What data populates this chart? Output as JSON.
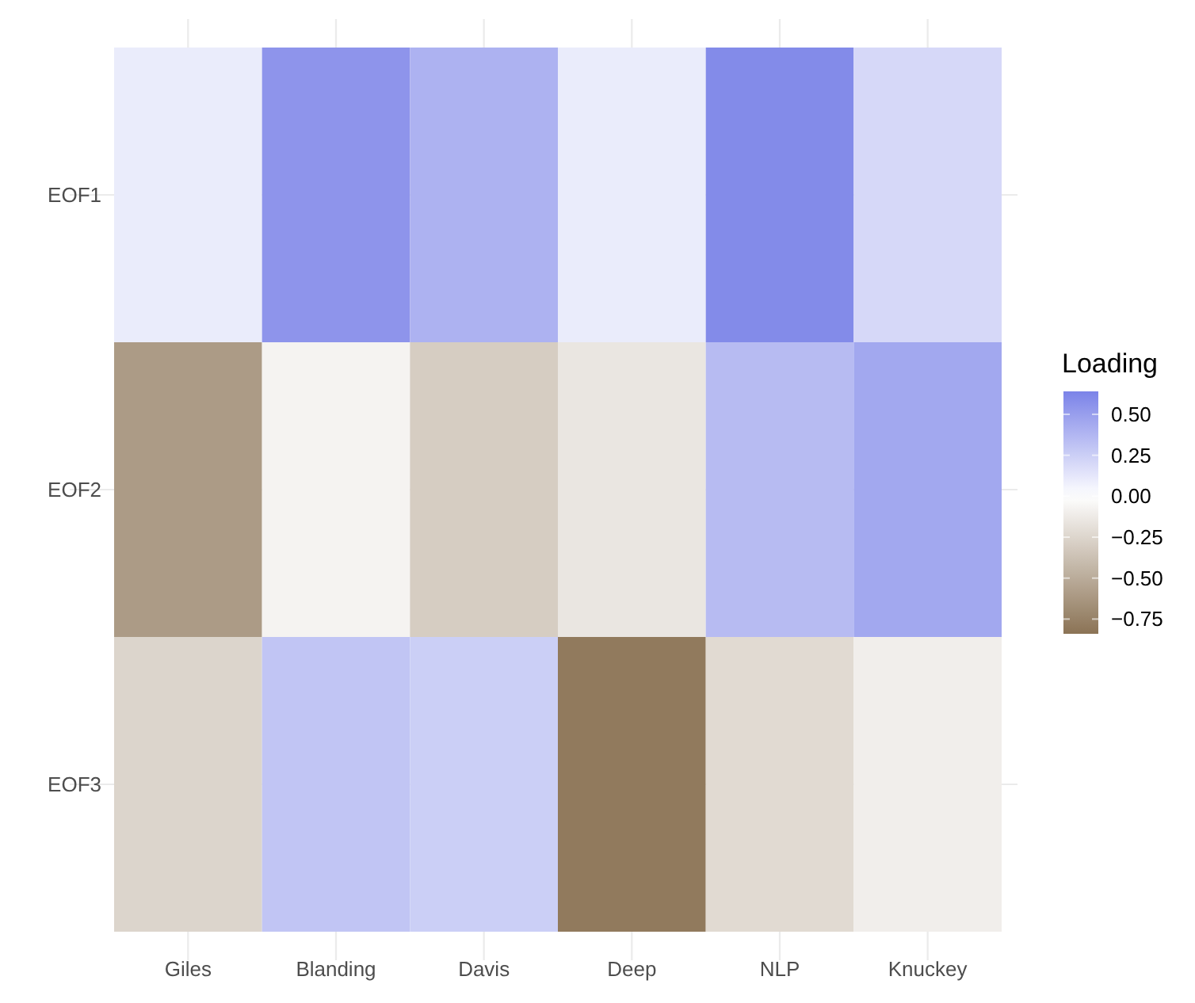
{
  "chart_data": {
    "type": "heatmap",
    "legend_title": "Loading",
    "categories": [
      "Giles",
      "Blanding",
      "Davis",
      "Deep",
      "NLP",
      "Knuckey"
    ],
    "y_categories": [
      "EOF1",
      "EOF2",
      "EOF3"
    ],
    "cells": [
      [
        0.1,
        0.55,
        0.4,
        0.1,
        0.6,
        0.2
      ],
      [
        -0.6,
        -0.07,
        -0.3,
        -0.15,
        0.35,
        0.45
      ],
      [
        -0.25,
        0.3,
        0.25,
        -0.8,
        -0.22,
        -0.1
      ]
    ],
    "clim": [
      -0.84,
      0.64
    ],
    "cticks": [
      {
        "value": 0.5,
        "label": "0.50"
      },
      {
        "value": 0.25,
        "label": "0.25"
      },
      {
        "value": 0,
        "label": "0.00"
      },
      {
        "value": -0.25,
        "label": "−0.25"
      },
      {
        "value": -0.5,
        "label": "−0.50"
      },
      {
        "value": -0.75,
        "label": "−0.75"
      }
    ],
    "grid": true
  }
}
